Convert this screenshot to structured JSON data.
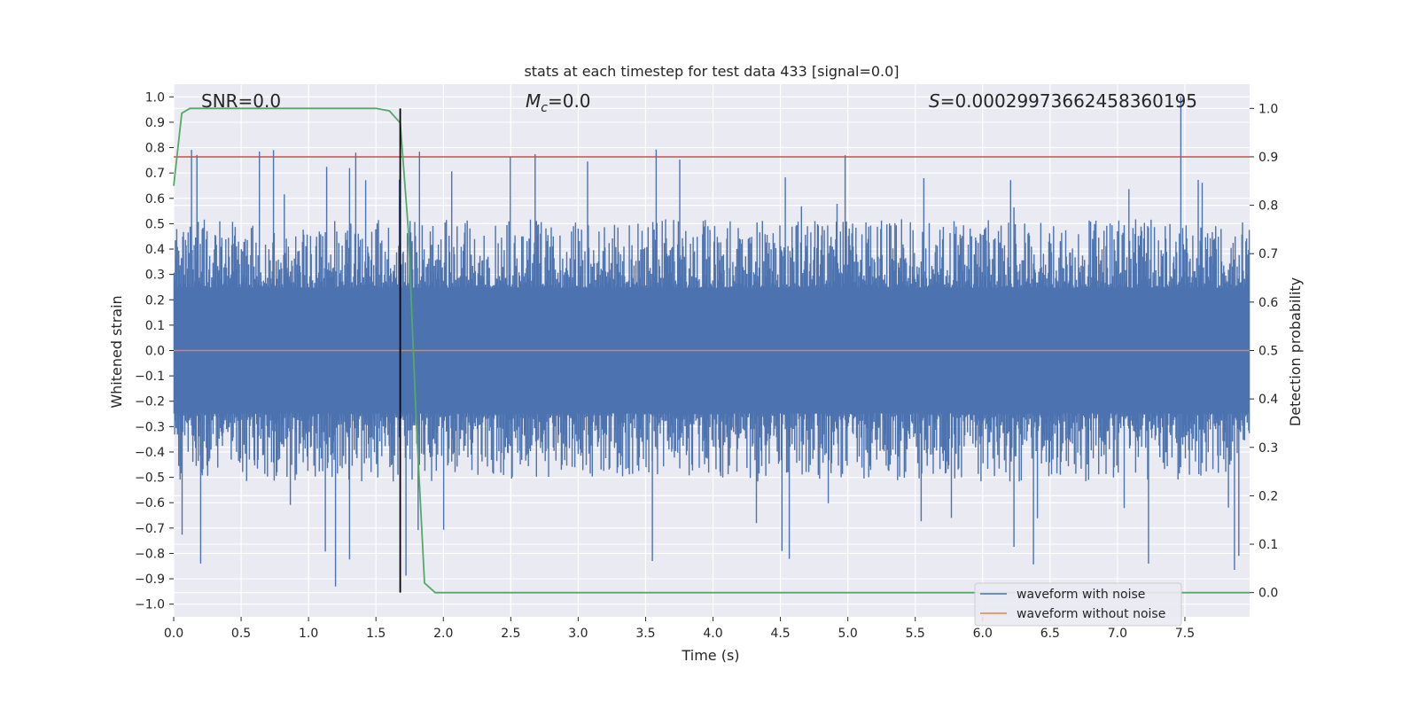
{
  "chart_data": {
    "type": "line",
    "title": "stats at each timestep for test data 433 [signal=0.0]",
    "xlabel": "Time (s)",
    "ylabel_left": "Whitened strain",
    "ylabel_right": "Detection probability",
    "xlim": [
      0.0,
      7.98
    ],
    "ylim_left": [
      -1.05,
      1.05
    ],
    "ylim_right": [
      -0.05,
      1.05
    ],
    "grid": true,
    "x_ticks": [
      "0.0",
      "0.5",
      "1.0",
      "1.5",
      "2.0",
      "2.5",
      "3.0",
      "3.5",
      "4.0",
      "4.5",
      "5.0",
      "5.5",
      "6.0",
      "6.5",
      "7.0",
      "7.5"
    ],
    "y_left_ticks": [
      "1.0",
      "0.9",
      "0.8",
      "0.7",
      "0.6",
      "0.5",
      "0.4",
      "0.3",
      "0.2",
      "0.1",
      "0.0",
      "−0.1",
      "−0.2",
      "−0.3",
      "−0.4",
      "−0.5",
      "−0.6",
      "−0.7",
      "−0.8",
      "−0.9",
      "−1.0"
    ],
    "y_right_ticks": [
      "1.0",
      "0.9",
      "0.8",
      "0.7",
      "0.6",
      "0.5",
      "0.4",
      "0.3",
      "0.2",
      "0.1",
      "0.0"
    ],
    "annotations": {
      "snr": "SNR=0.0",
      "mc_symbol": "M",
      "mc_sub": "c",
      "mc_value": "=0.0",
      "s_symbol": "S",
      "s_value": "=0.00029973662458360195"
    },
    "threshold_right": 0.9,
    "vertical_marker_x": 1.68,
    "series": [
      {
        "name": "waveform with noise",
        "axis": "left",
        "color": "#4c72b0",
        "description_envelope": {
          "typical_max": 0.45,
          "typical_min": -0.45,
          "peak_max": 1.0,
          "peak_min": -0.93
        }
      },
      {
        "name": "waveform without noise",
        "axis": "left",
        "color": "#dd8452",
        "x": [
          0.0,
          7.98
        ],
        "y": [
          0.0,
          0.0
        ]
      },
      {
        "name": "detection probability",
        "axis": "right",
        "color": "#55a868",
        "x": [
          0.0,
          0.06,
          0.12,
          0.2,
          0.4,
          0.8,
          1.2,
          1.5,
          1.6,
          1.68,
          1.74,
          1.8,
          1.86,
          1.94,
          2.0,
          3.0,
          5.0,
          7.0,
          7.98
        ],
        "y": [
          0.84,
          0.99,
          1.0,
          1.0,
          1.0,
          1.0,
          1.0,
          1.0,
          0.995,
          0.97,
          0.75,
          0.35,
          0.02,
          0.0,
          0.0,
          0.0,
          0.0,
          0.0,
          0.0
        ]
      }
    ],
    "legend": [
      "waveform with noise",
      "waveform without noise"
    ],
    "colors": {
      "background": "#eaeaf2",
      "grid": "#ffffff",
      "threshold": "#c44e52",
      "marker": "#000000"
    }
  }
}
